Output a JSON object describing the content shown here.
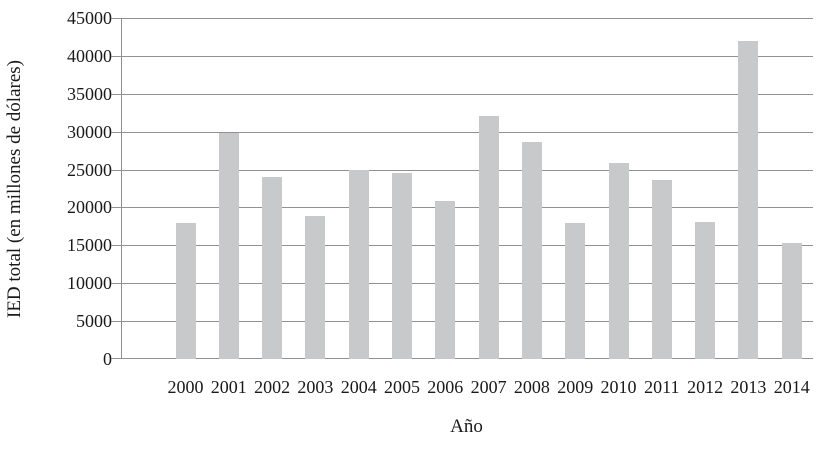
{
  "chart_data": {
    "type": "bar",
    "title": "",
    "categories": [
      "2000",
      "2001",
      "2002",
      "2003",
      "2004",
      "2005",
      "2006",
      "2007",
      "2008",
      "2009",
      "2010",
      "2011",
      "2012",
      "2013",
      "2014"
    ],
    "values": [
      18000,
      29800,
      24000,
      18900,
      25000,
      24600,
      20900,
      32100,
      28600,
      17900,
      25800,
      23600,
      18100,
      42000,
      15300
    ],
    "xlabel": "Año",
    "ylabel": "IED total (en millones de dólares)",
    "ylim": [
      0,
      45000
    ],
    "ytick_step": 5000,
    "yticks": [
      0,
      5000,
      10000,
      15000,
      20000,
      25000,
      30000,
      35000,
      40000,
      45000
    ],
    "grid": "horizontal",
    "legend": "none",
    "colors": {
      "bar_fill": "#c8c9cb",
      "gridline": "#919191",
      "axis": "#8f8f8f",
      "text": "#1a1a1a",
      "background": "#ffffff"
    }
  }
}
